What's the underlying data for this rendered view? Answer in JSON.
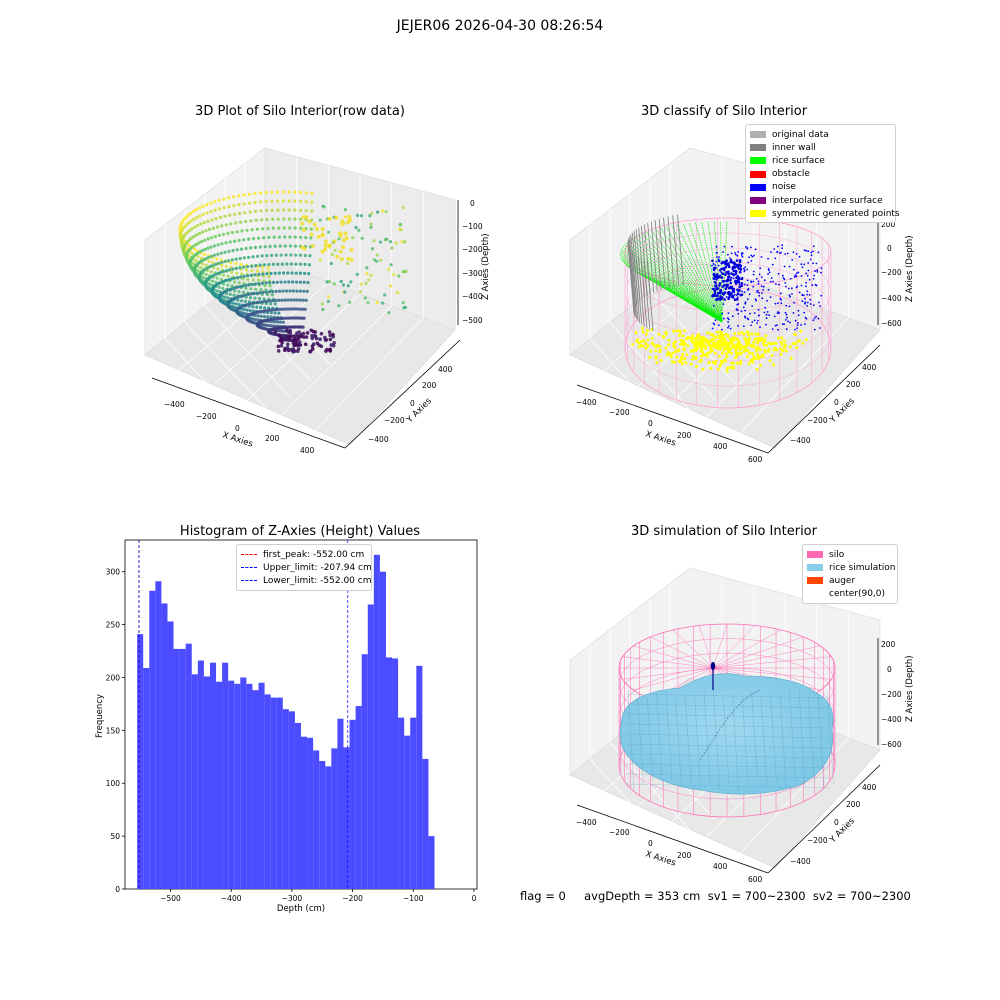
{
  "figure_title": "JEJER06 2026-04-30 08:26:54",
  "colors": {
    "histogram_bar": "#4b4bff",
    "first_peak_line": "#ff0000",
    "limit_line": "#0000ff",
    "silo_wire": "#ff69b4",
    "rice_surface_fill": "#87ceeb",
    "auger": "#00008b"
  },
  "panel_raw": {
    "title": "3D Plot of Silo Interior(row data)",
    "xlabel": "X Axies",
    "ylabel": "Y Axies",
    "zlabel": "Z Axies (Depth)",
    "x_ticks": [
      "−400",
      "−200",
      "0",
      "200",
      "400"
    ],
    "y_ticks": [
      "400",
      "200",
      "0",
      "−200",
      "−400"
    ],
    "z_ticks": [
      "0",
      "−100",
      "−200",
      "−300",
      "−400",
      "−500"
    ]
  },
  "panel_classify": {
    "title": "3D classify of Silo Interior",
    "xlabel": "X Axies",
    "ylabel": "Y Axies",
    "zlabel": "Z Axies (Depth)",
    "x_ticks": [
      "−400",
      "−200",
      "0",
      "200",
      "400",
      "600"
    ],
    "y_ticks": [
      "400",
      "200",
      "0",
      "−200",
      "−400"
    ],
    "z_ticks": [
      "200",
      "0",
      "−200",
      "−400",
      "−600"
    ],
    "legend": [
      {
        "label": "original data",
        "color": "#b0b0b0"
      },
      {
        "label": "inner wall",
        "color": "#808080"
      },
      {
        "label": "rice surface",
        "color": "#00ff00"
      },
      {
        "label": "obstacle",
        "color": "#ff0000"
      },
      {
        "label": "noise",
        "color": "#0000ff"
      },
      {
        "label": "interpolated rice surface",
        "color": "#800080"
      },
      {
        "label": "symmetric generated points",
        "color": "#ffff00"
      }
    ]
  },
  "panel_sim": {
    "title": "3D simulation of Silo Interior",
    "xlabel": "X Axies",
    "ylabel": "Y Axies",
    "zlabel": "Z Axies (Depth)",
    "x_ticks": [
      "−400",
      "−200",
      "0",
      "200",
      "400",
      "600"
    ],
    "y_ticks": [
      "400",
      "200",
      "0",
      "−200",
      "−400"
    ],
    "z_ticks": [
      "200",
      "0",
      "−200",
      "−400",
      "−600"
    ],
    "legend": [
      {
        "label": "silo",
        "color": "#ff69b4"
      },
      {
        "label": "rice simulation",
        "color": "#87ceeb"
      },
      {
        "label": "auger",
        "color": "#ff4500"
      },
      {
        "label": "center(90,0)",
        "color": ""
      }
    ]
  },
  "status_text": "flag = 0     avgDepth = 353 cm  sv1 = 700~2300  sv2 = 700~2300",
  "chart_data": {
    "type": "bar",
    "title": "Histogram of Z-Axies (Height) Values",
    "xlabel": "Depth (cm)",
    "ylabel": "Frequency",
    "xlim": [
      -575,
      5
    ],
    "ylim": [
      0,
      330
    ],
    "x_ticks": [
      -500,
      -400,
      -300,
      -200,
      -100,
      0
    ],
    "x_tick_labels": [
      "−500",
      "−400",
      "−300",
      "−200",
      "−100",
      "0"
    ],
    "y_ticks": [
      0,
      50,
      100,
      150,
      200,
      250,
      300
    ],
    "y_tick_labels": [
      "0",
      "50",
      "100",
      "150",
      "200",
      "250",
      "300"
    ],
    "bin_start": -555,
    "bin_width": 10,
    "values": [
      241,
      209,
      282,
      291,
      270,
      253,
      227,
      227,
      232,
      203,
      216,
      201,
      214,
      196,
      214,
      197,
      194,
      200,
      194,
      188,
      195,
      184,
      181,
      181,
      170,
      168,
      157,
      144,
      143,
      131,
      121,
      116,
      133,
      161,
      134,
      160,
      173,
      222,
      269,
      316,
      300,
      219,
      218,
      162,
      145,
      162,
      211,
      123,
      50
    ],
    "lines": [
      {
        "label": "first_peak: -552.00 cm",
        "x": -552,
        "color": "#ff0000"
      },
      {
        "label": "Upper_limit: -207.94 cm",
        "x": -207.94,
        "color": "#0000ff"
      },
      {
        "label": "Lower_limit: -552.00 cm",
        "x": -552,
        "color": "#0000ff"
      }
    ],
    "legend_position": "top-center"
  }
}
